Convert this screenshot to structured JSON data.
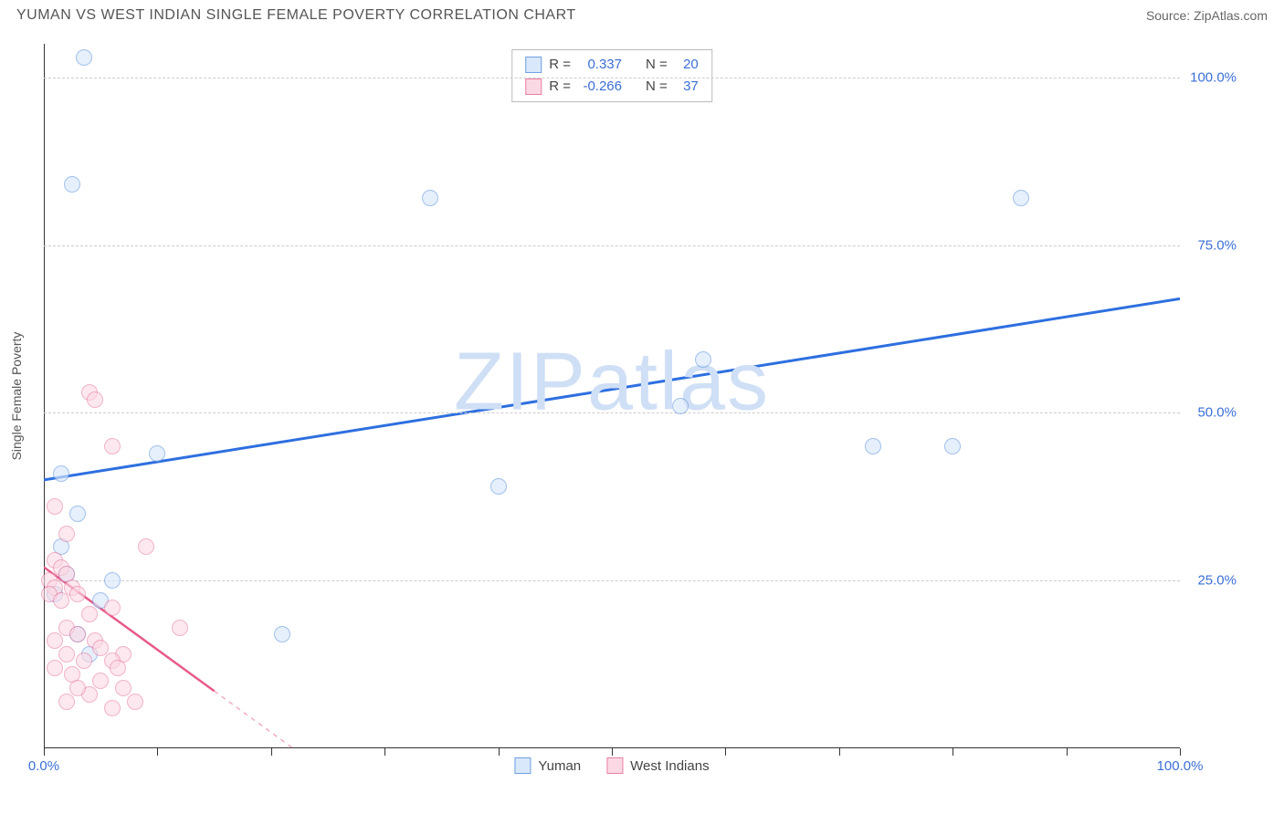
{
  "title": "YUMAN VS WEST INDIAN SINGLE FEMALE POVERTY CORRELATION CHART",
  "source": "Source: ZipAtlas.com",
  "watermark": "ZIPatlas",
  "chart": {
    "type": "scatter",
    "ylabel": "Single Female Poverty",
    "xlim": [
      0,
      100
    ],
    "ylim": [
      0,
      105
    ],
    "x_ticks": [
      0,
      10,
      20,
      30,
      40,
      50,
      60,
      70,
      80,
      90,
      100
    ],
    "x_tick_labels": {
      "0": "0.0%",
      "100": "100.0%"
    },
    "y_gridlines": [
      25,
      50,
      75,
      100
    ],
    "y_tick_labels": {
      "25": "25.0%",
      "50": "50.0%",
      "75": "75.0%",
      "100": "100.0%"
    },
    "background_color": "#ffffff",
    "grid_color": "#cccccc",
    "axis_color": "#333333",
    "marker_radius": 9,
    "marker_border_width": 1.2,
    "series": [
      {
        "name": "Yuman",
        "fill": "#d9e8fb",
        "stroke": "#6fa0e0",
        "fill_opacity": 0.65,
        "trend": {
          "x1": 0,
          "y1": 40,
          "x2": 100,
          "y2": 67,
          "stroke": "#2e6fe0",
          "width": 3,
          "dash": null
        },
        "R": "0.337",
        "N": "20",
        "points": [
          [
            3.5,
            103
          ],
          [
            2.5,
            84
          ],
          [
            34,
            82
          ],
          [
            86,
            82
          ],
          [
            58,
            58
          ],
          [
            56,
            51
          ],
          [
            10,
            44
          ],
          [
            1.5,
            41
          ],
          [
            3,
            35
          ],
          [
            40,
            39
          ],
          [
            73,
            45
          ],
          [
            80,
            45
          ],
          [
            6,
            25
          ],
          [
            21,
            17
          ],
          [
            2,
            26
          ],
          [
            1,
            23
          ],
          [
            4,
            14
          ],
          [
            3,
            17
          ],
          [
            1.5,
            30
          ],
          [
            5,
            22
          ]
        ]
      },
      {
        "name": "West Indians",
        "fill": "#fbd9e4",
        "stroke": "#e87fa5",
        "fill_opacity": 0.6,
        "trend": {
          "x1": 0,
          "y1": 27,
          "x2": 26,
          "y2": -5,
          "stroke": "#e85a8a",
          "width": 2.5,
          "dash": "solid-then-dash"
        },
        "R": "-0.266",
        "N": "37",
        "points": [
          [
            4,
            53
          ],
          [
            4.5,
            52
          ],
          [
            6,
            45
          ],
          [
            1,
            36
          ],
          [
            2,
            32
          ],
          [
            9,
            30
          ],
          [
            1,
            28
          ],
          [
            1.5,
            27
          ],
          [
            2,
            26
          ],
          [
            0.5,
            25
          ],
          [
            1,
            24
          ],
          [
            2.5,
            24
          ],
          [
            3,
            23
          ],
          [
            0.5,
            23
          ],
          [
            1.5,
            22
          ],
          [
            4,
            20
          ],
          [
            6,
            21
          ],
          [
            12,
            18
          ],
          [
            2,
            18
          ],
          [
            3,
            17
          ],
          [
            4.5,
            16
          ],
          [
            1,
            16
          ],
          [
            5,
            15
          ],
          [
            7,
            14
          ],
          [
            2,
            14
          ],
          [
            3.5,
            13
          ],
          [
            6,
            13
          ],
          [
            6.5,
            12
          ],
          [
            1,
            12
          ],
          [
            2.5,
            11
          ],
          [
            5,
            10
          ],
          [
            7,
            9
          ],
          [
            4,
            8
          ],
          [
            8,
            7
          ],
          [
            6,
            6
          ],
          [
            3,
            9
          ],
          [
            2,
            7
          ]
        ]
      }
    ],
    "legend_top": [
      {
        "series": 0,
        "R_label": "R =",
        "N_label": "N ="
      },
      {
        "series": 1,
        "R_label": "R =",
        "N_label": "N ="
      }
    ],
    "legend_bottom": [
      {
        "series": 0
      },
      {
        "series": 1
      }
    ]
  }
}
